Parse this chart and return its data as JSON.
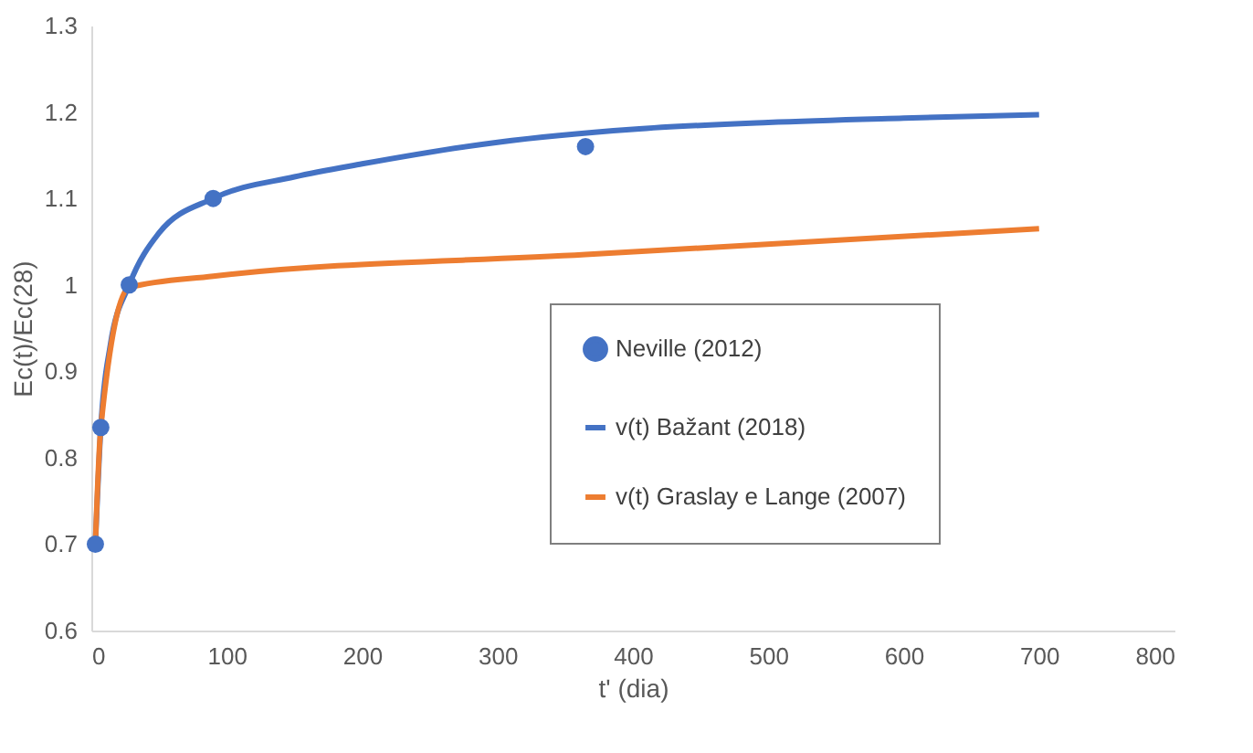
{
  "chart_data": {
    "type": "line",
    "xlabel": "t' (dia)",
    "ylabel": "Ec(t)/Ec(28)",
    "xlim": [
      0,
      800
    ],
    "xticks": [
      0,
      100,
      200,
      300,
      400,
      500,
      600,
      700,
      800
    ],
    "ylim": [
      0.6,
      1.3
    ],
    "yticks": [
      0.6,
      0.7,
      0.8,
      0.9,
      {
        "value": 1,
        "label": "1"
      },
      1.1,
      1.2,
      1.3
    ],
    "grid": false,
    "legend": "right",
    "series": [
      {
        "name": "Neville (2012)",
        "type": "scatter",
        "marker": "circle",
        "color": "#4472c4",
        "x": [
          3,
          7,
          28,
          90,
          365
        ],
        "values": [
          0.7,
          0.835,
          1.0,
          1.1,
          1.16
        ]
      },
      {
        "name": "v(t) Bažant (2018)",
        "line_style": "solid",
        "color": "#4472c4",
        "x": [
          3,
          7,
          14,
          28,
          50,
          90,
          150,
          200,
          300,
          400,
          500,
          600,
          700
        ],
        "values": [
          0.7,
          0.835,
          0.93,
          1.0,
          1.06,
          1.1,
          1.125,
          1.14,
          1.165,
          1.18,
          1.188,
          1.193,
          1.197
        ]
      },
      {
        "name": "v(t) Graslay e Lange (2007)",
        "line_style": "solid",
        "color": "#ed7d31",
        "x": [
          3,
          7,
          28,
          90,
          365,
          700
        ],
        "values": [
          0.7,
          0.835,
          0.997,
          1.01,
          1.035,
          1.065
        ]
      }
    ]
  }
}
